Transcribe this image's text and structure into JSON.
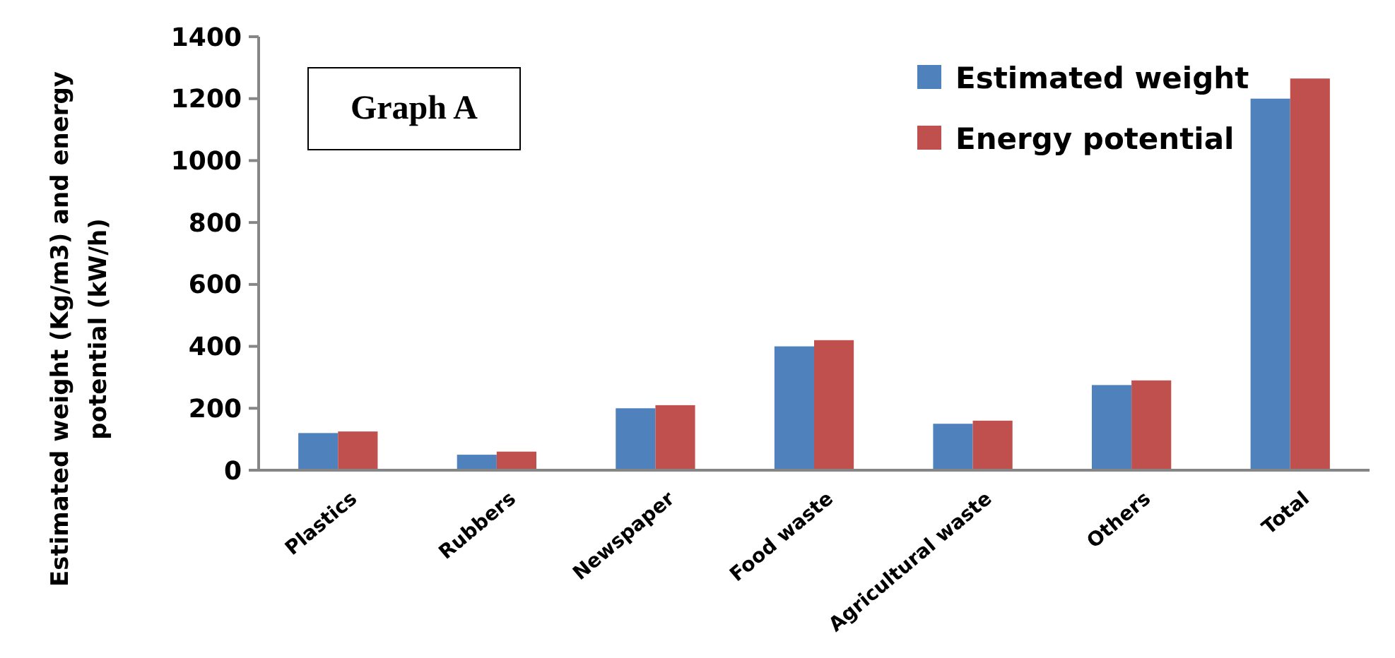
{
  "chart_data": {
    "type": "bar",
    "title": "Graph A",
    "ylabel": "Estimated weight (Kg/m3) and energy potential (kW/h)",
    "categories": [
      "Plastics",
      "Rubbers",
      "Newspaper",
      "Food waste",
      "Agricultural waste",
      "Others",
      "Total"
    ],
    "series": [
      {
        "name": "Estimated weight",
        "color": "#4f81bd",
        "values": [
          120,
          50,
          200,
          400,
          150,
          275,
          1200
        ]
      },
      {
        "name": "Energy potential",
        "color": "#c0504d",
        "values": [
          125,
          60,
          210,
          420,
          160,
          290,
          1265
        ]
      }
    ],
    "ylim": [
      0,
      1400
    ],
    "yticks": [
      0,
      200,
      400,
      600,
      800,
      1000,
      1200,
      1400
    ],
    "grid": false,
    "legend": "top right"
  }
}
